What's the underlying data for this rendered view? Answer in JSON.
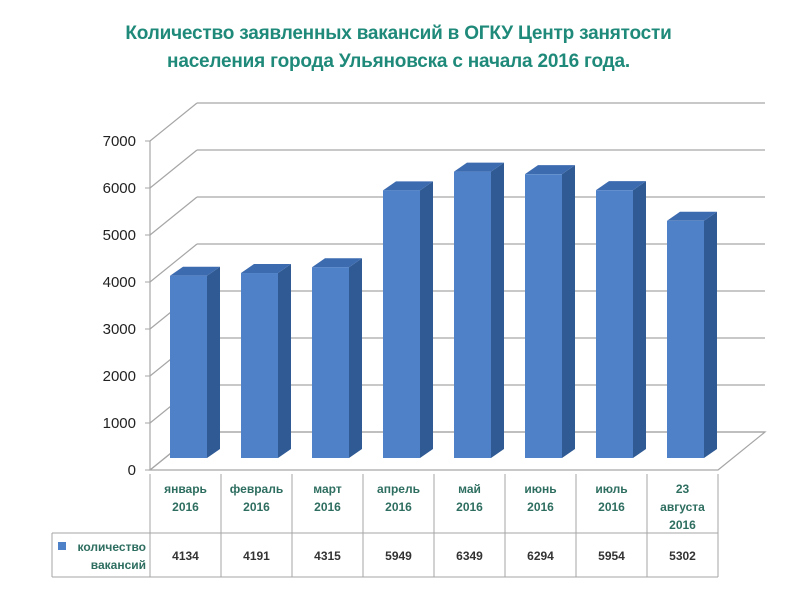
{
  "title_line1": "Количество заявленных вакансий в ОГКУ Центр занятости",
  "title_line2": "населения города Ульяновска с начала 2016 года.",
  "colors": {
    "bar_front": "#4f81c9",
    "bar_side": "#2f5a94",
    "bar_top": "#3d6bb0",
    "grid": "#a6a6a6",
    "title": "#1f8a7a",
    "category_text": "#2e6e60"
  },
  "chart_data": {
    "type": "bar",
    "title": "Количество заявленных вакансий в ОГКУ Центр занятости населения города Ульяновска с начала 2016 года.",
    "categories": [
      [
        "январь",
        "2016"
      ],
      [
        "февраль",
        "2016"
      ],
      [
        "март",
        "2016"
      ],
      [
        "апрель",
        "2016"
      ],
      [
        "май",
        "2016"
      ],
      [
        "июнь",
        "2016"
      ],
      [
        "июль",
        "2016"
      ],
      [
        "23",
        "августа",
        "2016"
      ]
    ],
    "series": [
      {
        "name": "количество вакансий",
        "values": [
          4134,
          4191,
          4315,
          5949,
          6349,
          6294,
          5954,
          5302
        ]
      }
    ],
    "xlabel": "",
    "ylabel": "",
    "ylim": [
      0,
      7000
    ],
    "yticks": [
      0,
      1000,
      2000,
      3000,
      4000,
      5000,
      6000,
      7000
    ],
    "grid": true,
    "legend_position": "data-table",
    "legend_label_lines": [
      "количество",
      "вакансий"
    ],
    "style": "3d-column with data table"
  }
}
